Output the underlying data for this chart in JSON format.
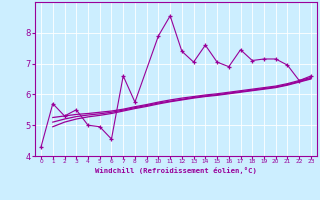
{
  "xlabel": "Windchill (Refroidissement éolien,°C)",
  "bg_color": "#cceeff",
  "line_color": "#990099",
  "x_data": [
    0,
    1,
    2,
    3,
    4,
    5,
    6,
    7,
    8,
    9,
    10,
    11,
    12,
    13,
    14,
    15,
    16,
    17,
    18,
    19,
    20,
    21,
    22,
    23
  ],
  "jagged_y": [
    4.3,
    5.7,
    5.3,
    5.5,
    5.0,
    4.95,
    4.55,
    6.6,
    5.75,
    null,
    7.9,
    8.55,
    7.4,
    7.05,
    7.6,
    7.05,
    6.9,
    7.45,
    7.1,
    7.15,
    7.15,
    6.95,
    6.45,
    6.6
  ],
  "smooth1_x": [
    1,
    2,
    3,
    4,
    5,
    6,
    7,
    8,
    9,
    10,
    11,
    12,
    13,
    14,
    15,
    16,
    17,
    18,
    19,
    20,
    21,
    22,
    23
  ],
  "smooth1_y": [
    5.25,
    5.3,
    5.35,
    5.38,
    5.42,
    5.46,
    5.52,
    5.6,
    5.67,
    5.75,
    5.82,
    5.88,
    5.93,
    5.98,
    6.02,
    6.07,
    6.12,
    6.17,
    6.22,
    6.27,
    6.35,
    6.45,
    6.55
  ],
  "smooth2_x": [
    1,
    2,
    3,
    4,
    5,
    6,
    7,
    8,
    9,
    10,
    11,
    12,
    13,
    14,
    15,
    16,
    17,
    18,
    19,
    20,
    21,
    22,
    23
  ],
  "smooth2_y": [
    5.1,
    5.2,
    5.28,
    5.33,
    5.37,
    5.42,
    5.49,
    5.57,
    5.64,
    5.72,
    5.78,
    5.84,
    5.9,
    5.95,
    5.99,
    6.04,
    6.09,
    6.14,
    6.19,
    6.24,
    6.32,
    6.42,
    6.52
  ],
  "smooth3_x": [
    1,
    2,
    3,
    4,
    5,
    6,
    7,
    8,
    9,
    10,
    11,
    12,
    13,
    14,
    15,
    16,
    17,
    18,
    19,
    20,
    21,
    22,
    23
  ],
  "smooth3_y": [
    4.95,
    5.1,
    5.2,
    5.27,
    5.32,
    5.38,
    5.46,
    5.54,
    5.61,
    5.69,
    5.76,
    5.82,
    5.88,
    5.93,
    5.97,
    6.02,
    6.07,
    6.12,
    6.17,
    6.22,
    6.3,
    6.4,
    6.5
  ],
  "ylim": [
    4.0,
    9.0
  ],
  "yticks": [
    4,
    5,
    6,
    7,
    8
  ],
  "xlim": [
    -0.5,
    23.5
  ],
  "xticks": [
    0,
    1,
    2,
    3,
    4,
    5,
    6,
    7,
    8,
    9,
    10,
    11,
    12,
    13,
    14,
    15,
    16,
    17,
    18,
    19,
    20,
    21,
    22,
    23
  ]
}
